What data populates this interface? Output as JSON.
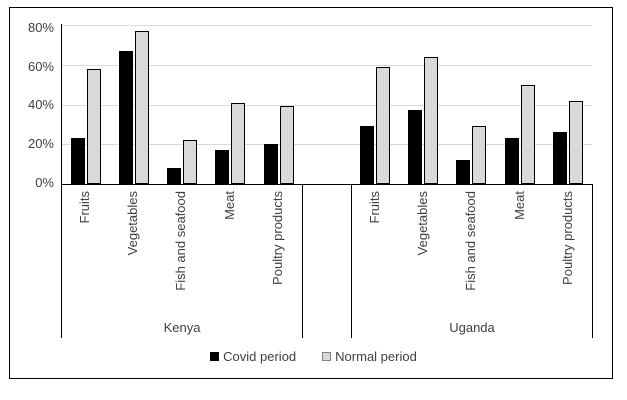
{
  "chart_data": {
    "type": "bar",
    "title": "",
    "groups": [
      "Kenya",
      "Uganda"
    ],
    "categories": [
      "Fruits",
      "Vegetables",
      "Fish and seafood",
      "Meat",
      "Poultry products"
    ],
    "series": [
      {
        "name": "Covid period",
        "fill": "#000000",
        "values": {
          "Kenya": [
            23,
            67,
            8,
            17,
            20
          ],
          "Uganda": [
            29,
            37,
            12,
            23,
            26
          ]
        }
      },
      {
        "name": "Normal period",
        "fill": "#d9d9d9",
        "values": {
          "Kenya": [
            58,
            77,
            22,
            41,
            39
          ],
          "Uganda": [
            59,
            64,
            29,
            50,
            42
          ]
        }
      }
    ],
    "y_axis": {
      "min": 0,
      "max": 80,
      "unit": "%",
      "ticks": [
        "80%",
        "60%",
        "40%",
        "20%",
        "0%"
      ]
    },
    "grid": true,
    "legend_position": "bottom",
    "colors": {
      "grid": "#d9d9d9",
      "axis": "#000000",
      "text": "#404040",
      "bar_border": "#000000",
      "frame_border": "#000000",
      "background": "#ffffff"
    }
  }
}
